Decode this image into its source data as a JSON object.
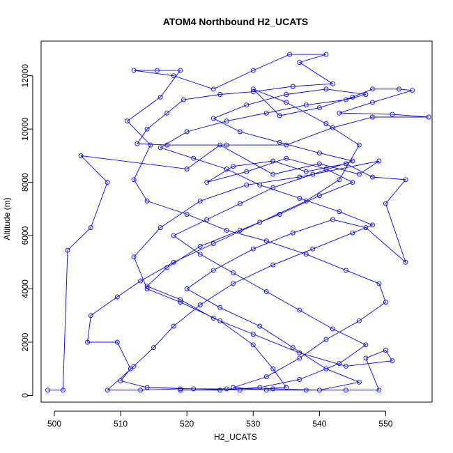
{
  "chart_data": {
    "type": "line",
    "title": "ATOM4 Northbound H2_UCATS",
    "xlabel": "H2_UCATS",
    "ylabel": "Altitude (m)",
    "xlim": [
      498,
      557
    ],
    "ylim": [
      -250,
      13300
    ],
    "xticks": [
      500,
      510,
      520,
      530,
      540,
      550
    ],
    "yticks": [
      0,
      2000,
      4000,
      6000,
      8000,
      10000,
      12000
    ],
    "grid": false,
    "marker": "open-circle",
    "line_color": "#0000ff",
    "series": [
      {
        "points": [
          [
            499,
            200
          ],
          [
            501.3,
            200
          ],
          [
            502,
            5450
          ],
          [
            505.5,
            6300
          ],
          [
            508,
            8000
          ],
          [
            504,
            9000
          ],
          [
            520,
            8500
          ],
          [
            525,
            9400
          ],
          [
            533,
            8300
          ],
          [
            540,
            8700
          ],
          [
            546,
            8300
          ],
          [
            549,
            8800
          ],
          [
            537,
            8200
          ],
          [
            529,
            7900
          ],
          [
            522,
            7300
          ],
          [
            516,
            6300
          ],
          [
            512,
            5200
          ],
          [
            514,
            4000
          ],
          [
            519,
            3500
          ],
          [
            525,
            2800
          ],
          [
            530,
            1900
          ],
          [
            533,
            1000
          ],
          [
            535,
            300
          ],
          [
            528,
            200
          ],
          [
            521,
            250
          ],
          [
            514,
            300
          ],
          [
            510,
            550
          ],
          [
            511.5,
            1000
          ],
          [
            509.5,
            2000
          ],
          [
            505,
            2000
          ],
          [
            505.5,
            3000
          ],
          [
            509.5,
            3700
          ],
          [
            513,
            4300
          ],
          [
            518,
            5000
          ],
          [
            524,
            5700
          ],
          [
            531,
            6500
          ],
          [
            538,
            7300
          ],
          [
            543,
            8100
          ],
          [
            546,
            9400
          ],
          [
            541,
            10200
          ],
          [
            535,
            11000
          ],
          [
            530,
            11500
          ],
          [
            534,
            10500
          ],
          [
            540,
            10800
          ],
          [
            545,
            11200
          ],
          [
            548,
            11500
          ],
          [
            552,
            11500
          ],
          [
            554,
            11450
          ],
          [
            548,
            11000
          ],
          [
            543,
            10600
          ],
          [
            551,
            10550
          ],
          [
            556.5,
            10450
          ],
          [
            548,
            10450
          ],
          [
            542,
            10050
          ],
          [
            535,
            9400
          ],
          [
            526,
            9400
          ],
          [
            517,
            9400
          ],
          [
            512.5,
            9450
          ],
          [
            514,
            10000
          ],
          [
            517,
            10600
          ],
          [
            519.5,
            11100
          ],
          [
            525,
            11300
          ],
          [
            530,
            11400
          ],
          [
            536,
            11600
          ],
          [
            542,
            11700
          ],
          [
            537,
            12500
          ],
          [
            541,
            12800
          ],
          [
            535.5,
            12800
          ],
          [
            530,
            12200
          ],
          [
            524,
            11500
          ],
          [
            518,
            12000
          ],
          [
            512,
            12200
          ],
          [
            515.5,
            12200
          ],
          [
            519,
            12200
          ],
          [
            516,
            11200
          ],
          [
            511,
            10300
          ],
          [
            514.5,
            9400
          ],
          [
            512,
            8100
          ],
          [
            514,
            7300
          ],
          [
            520,
            6800
          ],
          [
            526,
            6200
          ],
          [
            532,
            5800
          ],
          [
            538,
            5300
          ],
          [
            544,
            4700
          ],
          [
            549,
            4200
          ],
          [
            550,
            3500
          ],
          [
            546,
            2800
          ],
          [
            541,
            2100
          ],
          [
            537,
            1400
          ],
          [
            532,
            700
          ],
          [
            527,
            300
          ],
          [
            532,
            200
          ],
          [
            538,
            200
          ],
          [
            544,
            200
          ],
          [
            549,
            200
          ],
          [
            547,
            1400
          ],
          [
            550,
            1700
          ],
          [
            551,
            1300
          ],
          [
            544,
            1100
          ],
          [
            537,
            1600
          ],
          [
            530,
            2300
          ],
          [
            524,
            2900
          ],
          [
            519,
            3600
          ],
          [
            514,
            4100
          ],
          [
            517,
            4800
          ],
          [
            522,
            5600
          ],
          [
            528,
            6200
          ],
          [
            534,
            6800
          ],
          [
            540,
            7500
          ],
          [
            545,
            8000
          ],
          [
            541,
            8500
          ],
          [
            535,
            8900
          ],
          [
            529,
            8400
          ],
          [
            523,
            8000
          ],
          [
            527,
            8600
          ],
          [
            533,
            8800
          ],
          [
            538,
            8400
          ],
          [
            544,
            8700
          ],
          [
            548,
            8200
          ],
          [
            553,
            8100
          ],
          [
            550,
            7200
          ],
          [
            553,
            5000
          ],
          [
            547,
            6300
          ],
          [
            542,
            6600
          ],
          [
            536,
            6100
          ],
          [
            530,
            5500
          ],
          [
            524,
            4700
          ],
          [
            520,
            4000
          ],
          [
            525,
            3300
          ],
          [
            531,
            2600
          ],
          [
            536,
            1800
          ],
          [
            541,
            1000
          ],
          [
            546,
            500
          ],
          [
            540,
            200
          ],
          [
            533,
            250
          ],
          [
            526,
            250
          ],
          [
            519,
            250
          ],
          [
            513,
            200
          ],
          [
            508,
            200
          ],
          [
            512,
            1100
          ],
          [
            515,
            1800
          ],
          [
            518,
            2600
          ],
          [
            522,
            3400
          ],
          [
            527,
            4200
          ],
          [
            533,
            4900
          ],
          [
            539,
            5500
          ],
          [
            545,
            6100
          ],
          [
            548,
            6400
          ],
          [
            543,
            6900
          ],
          [
            537,
            7400
          ],
          [
            531,
            7900
          ],
          [
            526,
            8500
          ],
          [
            521,
            8900
          ],
          [
            516,
            9300
          ],
          [
            520,
            9900
          ],
          [
            526,
            10300
          ],
          [
            532,
            10600
          ],
          [
            538,
            10900
          ],
          [
            544,
            11100
          ],
          [
            547,
            11300
          ],
          [
            541,
            11500
          ],
          [
            535,
            11300
          ],
          [
            529,
            10900
          ],
          [
            524,
            10400
          ],
          [
            528,
            9900
          ],
          [
            534,
            9500
          ],
          [
            540,
            9100
          ],
          [
            545,
            8800
          ],
          [
            539,
            8300
          ],
          [
            533,
            7800
          ],
          [
            528,
            7200
          ],
          [
            523,
            6600
          ],
          [
            518,
            6000
          ],
          [
            522,
            5300
          ],
          [
            527,
            4600
          ],
          [
            532,
            3900
          ],
          [
            537,
            3200
          ],
          [
            542,
            2500
          ],
          [
            547,
            1900
          ],
          [
            543,
            1200
          ],
          [
            537,
            600
          ],
          [
            531,
            300
          ],
          [
            525,
            200
          ],
          [
            519,
            200
          ]
        ]
      }
    ]
  }
}
